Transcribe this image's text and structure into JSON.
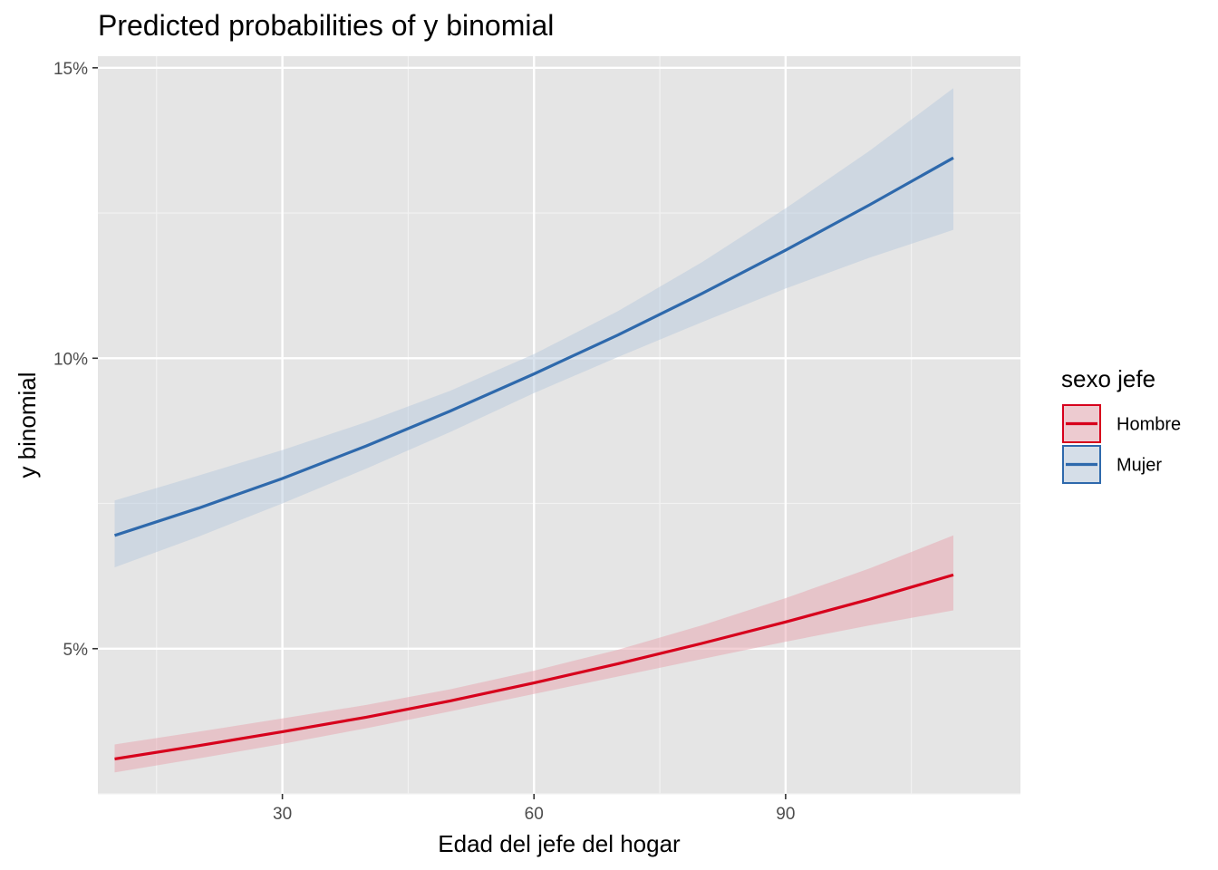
{
  "chart_data": {
    "type": "line",
    "title": "Predicted probabilities of y binomial",
    "xlabel": "Edad del jefe del hogar",
    "ylabel": "y binomial",
    "xlim": [
      8,
      118
    ],
    "ylim": [
      2.5,
      15.2
    ],
    "x_ticks": [
      30,
      60,
      90
    ],
    "x_tick_labels": [
      "30",
      "60",
      "90"
    ],
    "x_minor_ticks": [
      15,
      45,
      75,
      105
    ],
    "y_ticks": [
      5,
      10,
      15
    ],
    "y_tick_labels": [
      "5%",
      "10%",
      "15%"
    ],
    "y_minor_ticks": [
      2.5,
      7.5,
      12.5
    ],
    "grid": true,
    "legend": {
      "title": "sexo jefe",
      "position": "right",
      "entries": [
        "Hombre",
        "Mujer"
      ]
    },
    "x": [
      10,
      20,
      30,
      40,
      50,
      60,
      70,
      80,
      90,
      100,
      110
    ],
    "series": [
      {
        "name": "Hombre",
        "color": "#d7001c",
        "fill": "#e8a3ad",
        "values": [
          3.1,
          3.33,
          3.57,
          3.82,
          4.1,
          4.41,
          4.74,
          5.09,
          5.46,
          5.85,
          6.27
        ],
        "lower": [
          2.87,
          3.11,
          3.36,
          3.63,
          3.92,
          4.22,
          4.52,
          4.82,
          5.12,
          5.4,
          5.66
        ],
        "upper": [
          3.35,
          3.57,
          3.8,
          4.03,
          4.3,
          4.62,
          4.98,
          5.4,
          5.87,
          6.38,
          6.95
        ]
      },
      {
        "name": "Mujer",
        "color": "#2e69ac",
        "fill": "#b7c9dd",
        "values": [
          6.95,
          7.42,
          7.93,
          8.49,
          9.09,
          9.73,
          10.4,
          11.11,
          11.86,
          12.64,
          13.45
        ],
        "lower": [
          6.4,
          6.93,
          7.5,
          8.1,
          8.73,
          9.4,
          10.02,
          10.62,
          11.2,
          11.73,
          12.21
        ],
        "upper": [
          7.55,
          7.98,
          8.42,
          8.9,
          9.44,
          10.07,
          10.81,
          11.65,
          12.58,
          13.57,
          14.65
        ]
      }
    ]
  }
}
